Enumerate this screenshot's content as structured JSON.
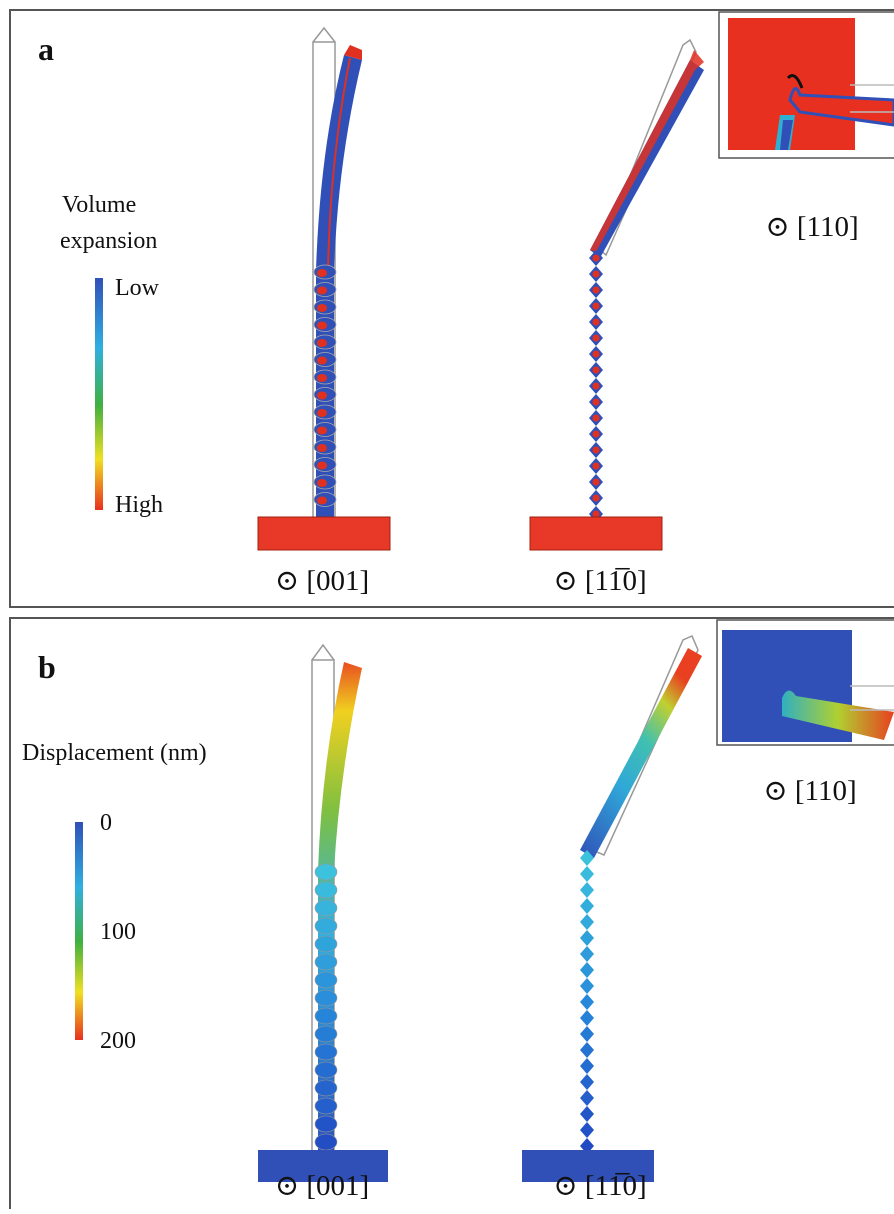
{
  "panels": [
    {
      "label": "a",
      "legend": {
        "title_lines": [
          "Volume",
          "expansion"
        ],
        "top": "Low",
        "bottom": "High"
      },
      "views": [
        "⊙ [001]",
        "⊙ [11̅0]",
        "⊙ [110]"
      ]
    },
    {
      "label": "b",
      "legend": {
        "title_lines": [
          "Displacement (nm)"
        ],
        "ticks": [
          0,
          100,
          200
        ]
      },
      "views": [
        "⊙ [001]",
        "⊙ [11̅0]",
        "⊙ [110]"
      ]
    }
  ]
}
